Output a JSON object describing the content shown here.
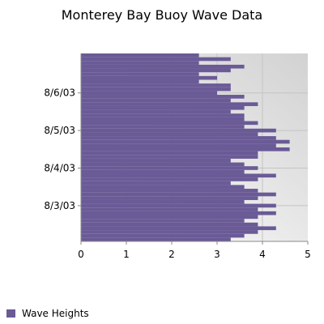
{
  "chart_data": {
    "type": "bar",
    "orientation": "horizontal",
    "title": "Monterey Bay Buoy Wave Data",
    "xlabel": "",
    "ylabel": "",
    "xlim": [
      0,
      5
    ],
    "x_ticks": [
      "0",
      "1",
      "2",
      "3",
      "4",
      "5"
    ],
    "y_ticks": [
      "8/3/03",
      "8/4/03",
      "8/5/03",
      "8/6/03"
    ],
    "y_tick_positions": [
      9.5,
      19.5,
      29.5,
      39.5
    ],
    "categories_count": 50,
    "series": [
      {
        "name": "Wave Heights",
        "color": "#6a5a96",
        "values": [
          3.3,
          3.6,
          3.9,
          4.3,
          3.9,
          3.6,
          3.9,
          4.3,
          3.9,
          4.3,
          3.6,
          3.9,
          4.3,
          3.9,
          3.6,
          3.3,
          3.9,
          4.3,
          3.6,
          3.9,
          3.6,
          3.3,
          3.9,
          3.9,
          4.6,
          4.3,
          4.6,
          4.3,
          3.9,
          4.3,
          3.6,
          3.9,
          3.6,
          3.6,
          3.3,
          3.6,
          3.9,
          3.3,
          3.6,
          3.0,
          3.3,
          3.3,
          2.6,
          3.0,
          2.6,
          3.3,
          3.6,
          2.6,
          3.3,
          2.6
        ],
        "color_role": "series fill"
      }
    ],
    "grid": true,
    "legend": "bottom-left",
    "background": "gradient light gray"
  }
}
